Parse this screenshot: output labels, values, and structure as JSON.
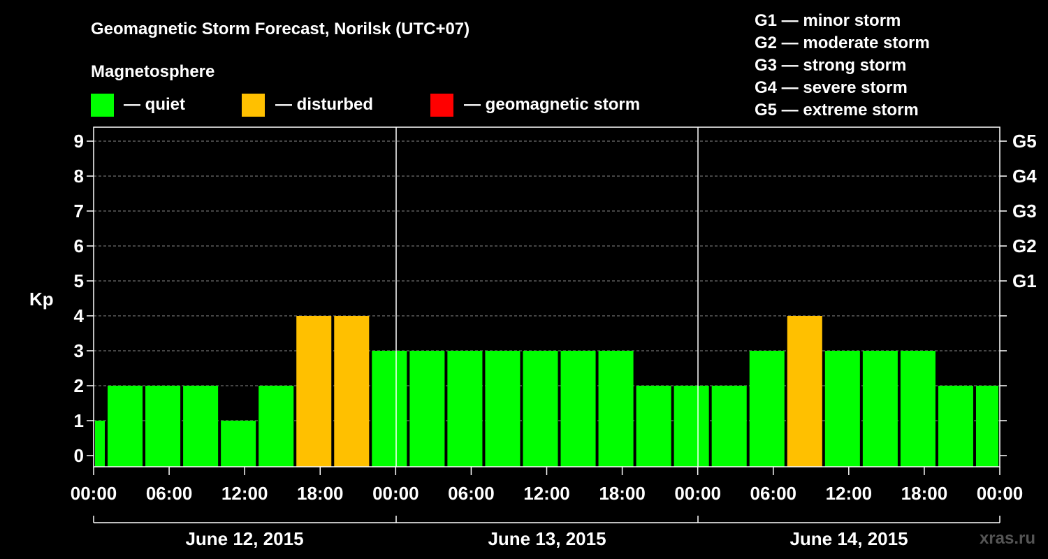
{
  "header": {
    "title": "Geomagnetic Storm Forecast, Norilsk (UTC+07)",
    "magnetosphere_label": "Magnetosphere"
  },
  "legend": {
    "items": [
      {
        "name": "quiet",
        "label": "— quiet",
        "color": "#00ff00"
      },
      {
        "name": "disturbed",
        "label": "— disturbed",
        "color": "#ffc000"
      },
      {
        "name": "storm",
        "label": "— geomagnetic storm",
        "color": "#ff0000"
      }
    ],
    "scale": [
      "G1 — minor storm",
      "G2 — moderate storm",
      "G3 — strong storm",
      "G4 — severe storm",
      "G5 — extreme storm"
    ]
  },
  "brand": "xras.ru",
  "chart_data": {
    "type": "bar",
    "ylabel": "Kp",
    "ylim": [
      0,
      9
    ],
    "y_ticks": [
      "0",
      "1",
      "2",
      "3",
      "4",
      "5",
      "6",
      "7",
      "8",
      "9"
    ],
    "y_right_labels": [
      {
        "kp": 5,
        "label": "G1"
      },
      {
        "kp": 6,
        "label": "G2"
      },
      {
        "kp": 7,
        "label": "G3"
      },
      {
        "kp": 8,
        "label": "G4"
      },
      {
        "kp": 9,
        "label": "G5"
      }
    ],
    "x_tick_labels": [
      "00:00",
      "06:00",
      "12:00",
      "18:00",
      "00:00",
      "06:00",
      "12:00",
      "18:00",
      "00:00",
      "06:00",
      "12:00",
      "18:00",
      "00:00"
    ],
    "dates": [
      "June 12, 2015",
      "June 13, 2015",
      "June 14, 2015"
    ],
    "grid": true,
    "colors": {
      "quiet": "#00ff00",
      "disturbed": "#ffc000",
      "storm": "#ff0000"
    },
    "bars": [
      {
        "start": "June 12, 2015 00:00",
        "end": "June 12, 2015 01:00",
        "kp": 1,
        "status": "quiet"
      },
      {
        "start": "June 12, 2015 01:00",
        "end": "June 12, 2015 04:00",
        "kp": 2,
        "status": "quiet"
      },
      {
        "start": "June 12, 2015 04:00",
        "end": "June 12, 2015 07:00",
        "kp": 2,
        "status": "quiet"
      },
      {
        "start": "June 12, 2015 07:00",
        "end": "June 12, 2015 10:00",
        "kp": 2,
        "status": "quiet"
      },
      {
        "start": "June 12, 2015 10:00",
        "end": "June 12, 2015 13:00",
        "kp": 1,
        "status": "quiet"
      },
      {
        "start": "June 12, 2015 13:00",
        "end": "June 12, 2015 16:00",
        "kp": 2,
        "status": "quiet"
      },
      {
        "start": "June 12, 2015 16:00",
        "end": "June 12, 2015 19:00",
        "kp": 4,
        "status": "disturbed"
      },
      {
        "start": "June 12, 2015 19:00",
        "end": "June 12, 2015 22:00",
        "kp": 4,
        "status": "disturbed"
      },
      {
        "start": "June 12, 2015 22:00",
        "end": "June 13, 2015 01:00",
        "kp": 3,
        "status": "quiet"
      },
      {
        "start": "June 13, 2015 01:00",
        "end": "June 13, 2015 04:00",
        "kp": 3,
        "status": "quiet"
      },
      {
        "start": "June 13, 2015 04:00",
        "end": "June 13, 2015 07:00",
        "kp": 3,
        "status": "quiet"
      },
      {
        "start": "June 13, 2015 07:00",
        "end": "June 13, 2015 10:00",
        "kp": 3,
        "status": "quiet"
      },
      {
        "start": "June 13, 2015 10:00",
        "end": "June 13, 2015 13:00",
        "kp": 3,
        "status": "quiet"
      },
      {
        "start": "June 13, 2015 13:00",
        "end": "June 13, 2015 16:00",
        "kp": 3,
        "status": "quiet"
      },
      {
        "start": "June 13, 2015 16:00",
        "end": "June 13, 2015 19:00",
        "kp": 3,
        "status": "quiet"
      },
      {
        "start": "June 13, 2015 19:00",
        "end": "June 13, 2015 22:00",
        "kp": 2,
        "status": "quiet"
      },
      {
        "start": "June 13, 2015 22:00",
        "end": "June 14, 2015 01:00",
        "kp": 2,
        "status": "quiet"
      },
      {
        "start": "June 14, 2015 01:00",
        "end": "June 14, 2015 04:00",
        "kp": 2,
        "status": "quiet"
      },
      {
        "start": "June 14, 2015 04:00",
        "end": "June 14, 2015 07:00",
        "kp": 3,
        "status": "quiet"
      },
      {
        "start": "June 14, 2015 07:00",
        "end": "June 14, 2015 10:00",
        "kp": 4,
        "status": "disturbed"
      },
      {
        "start": "June 14, 2015 10:00",
        "end": "June 14, 2015 13:00",
        "kp": 3,
        "status": "quiet"
      },
      {
        "start": "June 14, 2015 13:00",
        "end": "June 14, 2015 16:00",
        "kp": 3,
        "status": "quiet"
      },
      {
        "start": "June 14, 2015 16:00",
        "end": "June 14, 2015 19:00",
        "kp": 3,
        "status": "quiet"
      },
      {
        "start": "June 14, 2015 19:00",
        "end": "June 14, 2015 22:00",
        "kp": 2,
        "status": "quiet"
      },
      {
        "start": "June 14, 2015 22:00",
        "end": "June 15, 2015 00:00",
        "kp": 2,
        "status": "quiet"
      }
    ]
  }
}
